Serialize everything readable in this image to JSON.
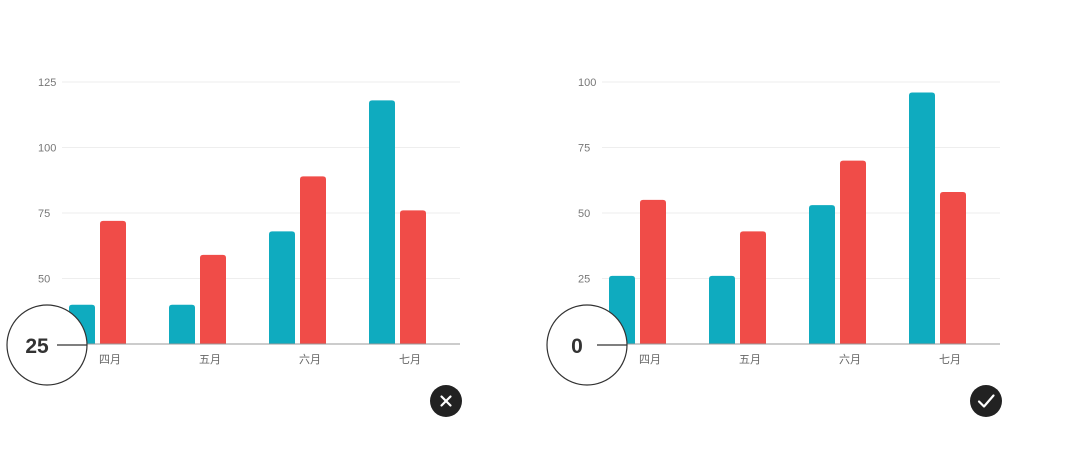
{
  "colors": {
    "series_a": "#0fabbf",
    "series_b": "#f04c48",
    "badge": "#222222"
  },
  "chart_data": [
    {
      "type": "bar",
      "categories": [
        "四月",
        "五月",
        "六月",
        "七月"
      ],
      "series": [
        {
          "values": [
            40,
            40,
            68,
            118
          ]
        },
        {
          "values": [
            72,
            59,
            89,
            76
          ]
        }
      ],
      "yticks": [
        50,
        75,
        100,
        125
      ],
      "ylim": [
        25,
        125
      ],
      "baseline_label": "25",
      "status_icon": "close-icon"
    },
    {
      "type": "bar",
      "categories": [
        "四月",
        "五月",
        "六月",
        "七月"
      ],
      "series": [
        {
          "values": [
            26,
            26,
            53,
            96
          ]
        },
        {
          "values": [
            55,
            43,
            70,
            58
          ]
        }
      ],
      "yticks": [
        25,
        50,
        75,
        100
      ],
      "ylim": [
        0,
        100
      ],
      "baseline_label": "0",
      "status_icon": "check-icon"
    }
  ]
}
